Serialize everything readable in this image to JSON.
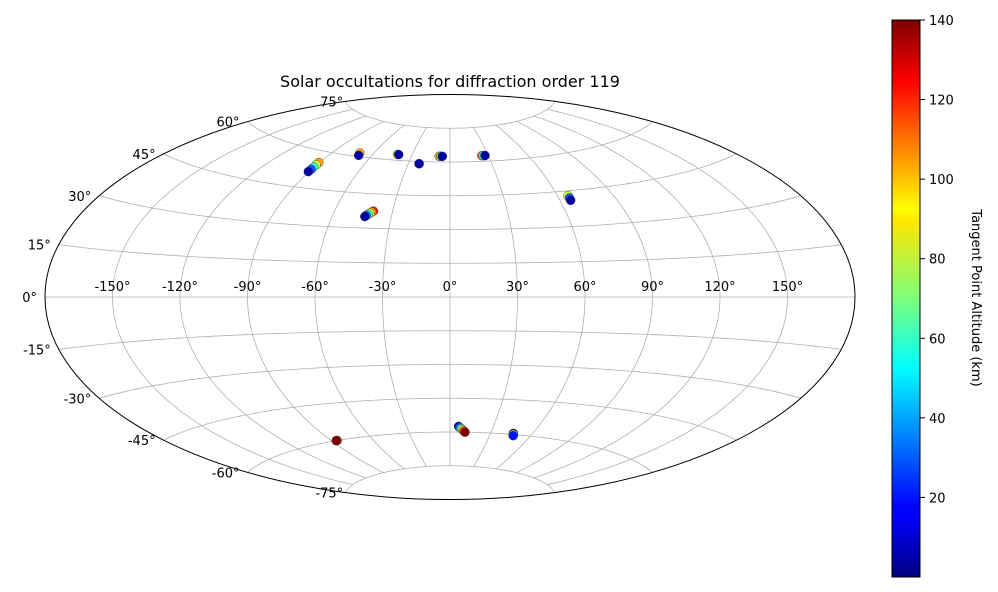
{
  "chart_data": {
    "type": "scatter",
    "projection": "aitoff",
    "title": "Solar occultations for diffraction order 119",
    "xlabel": "",
    "ylabel": "",
    "xlim": [
      -180,
      180
    ],
    "ylim": [
      -90,
      90
    ],
    "grid": true,
    "x_ticks": [
      -150,
      -120,
      -90,
      -60,
      -30,
      0,
      30,
      60,
      90,
      120,
      150
    ],
    "x_tick_labels": [
      "-150°",
      "-120°",
      "-90°",
      "-60°",
      "-30°",
      "0°",
      "30°",
      "60°",
      "90°",
      "120°",
      "150°"
    ],
    "y_ticks": [
      -75,
      -60,
      -45,
      -30,
      -15,
      0,
      15,
      30,
      45,
      60,
      75
    ],
    "y_tick_labels": [
      "-75°",
      "-60°",
      "-45°",
      "-30°",
      "-15°",
      "0°",
      "15°",
      "30°",
      "45°",
      "60°",
      "75°"
    ],
    "colorbar": {
      "label": "Tangent Point Altitude (km)",
      "range": [
        0,
        140
      ],
      "ticks": [
        20,
        40,
        60,
        80,
        100,
        120,
        140
      ],
      "colormap": "jet"
    },
    "series": [
      {
        "x": [
          -90.5,
          -90.4,
          -90.4,
          -90.3,
          -90.5,
          -70.5,
          -69.5,
          -41.5,
          -40.5,
          -22.3,
          -22.2,
          -8.5,
          -7.0,
          -6.0,
          25.0,
          26.0,
          27.5,
          65.8,
          65.8,
          65.7,
          -40.0,
          -40.8,
          -41.5,
          -42.2,
          -43.0,
          -43.5,
          -85.8,
          -86.2,
          -86.6,
          6.0,
          7.0,
          8.0,
          9.0,
          10.0,
          11.0,
          46.5,
          47.0,
          47.5
        ],
        "y": [
          55.5,
          54.5,
          53.5,
          52.5,
          51.5,
          61.5,
          60.5,
          62.5,
          62.5,
          59.0,
          59.0,
          62.5,
          62.5,
          62.5,
          62.5,
          62.5,
          62.5,
          43.0,
          42.0,
          41.0,
          37.5,
          37.0,
          36.5,
          36.0,
          35.5,
          35.0,
          -60.0,
          -60.0,
          -60.0,
          -57.5,
          -58.0,
          -58.5,
          -59.0,
          -59.5,
          -60.0,
          -59.5,
          -60.0,
          -60.5
        ],
        "z": [
          100,
          80,
          60,
          30,
          5,
          100,
          5,
          80,
          5,
          30,
          5,
          100,
          60,
          5,
          110,
          60,
          5,
          80,
          30,
          5,
          120,
          100,
          80,
          60,
          30,
          5,
          60,
          100,
          140,
          5,
          30,
          60,
          90,
          110,
          140,
          140,
          60,
          20
        ]
      }
    ]
  }
}
